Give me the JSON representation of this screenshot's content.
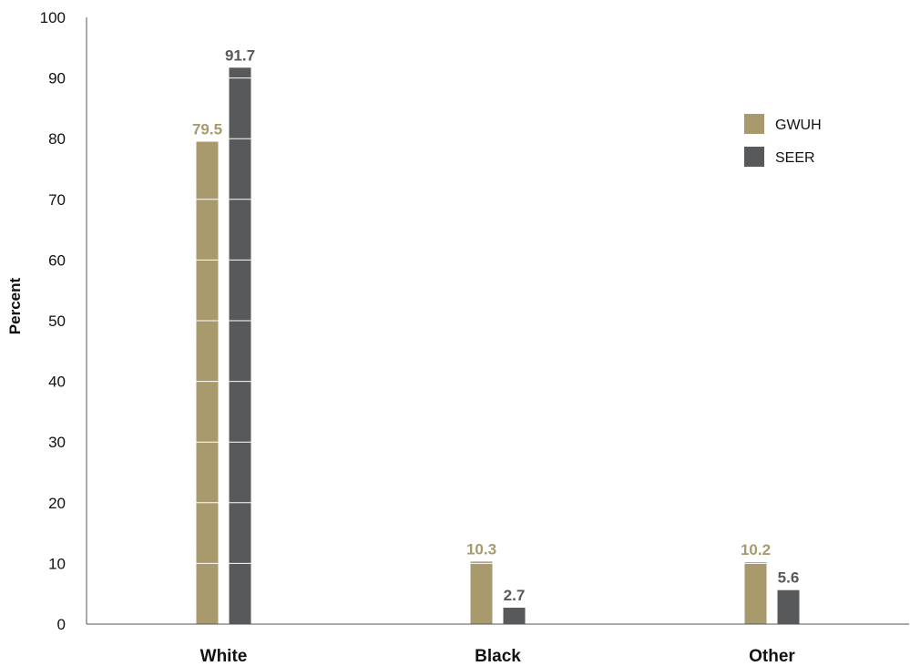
{
  "chart_data": {
    "type": "bar",
    "categories": [
      "White",
      "Black",
      "Other"
    ],
    "series": [
      {
        "name": "GWUH",
        "values": [
          79.5,
          10.3,
          10.2
        ],
        "color": "#a89a6c",
        "labels": [
          "79.5",
          "10.3",
          "10.2"
        ]
      },
      {
        "name": "SEER",
        "values": [
          91.7,
          2.7,
          5.6
        ],
        "color": "#58595b",
        "labels": [
          "91.7",
          "2.7",
          "5.6"
        ]
      }
    ],
    "title": "",
    "xlabel": "",
    "ylabel": "Percent",
    "ylim": [
      0,
      100
    ],
    "yticks": [
      0,
      10,
      20,
      30,
      40,
      50,
      60,
      70,
      80,
      90,
      100
    ],
    "ytick_labels": [
      "0",
      "10",
      "20",
      "30",
      "40",
      "50",
      "60",
      "70",
      "80",
      "90",
      "100"
    ],
    "grid": "white lines across bars only",
    "legend_position": "top-right"
  }
}
